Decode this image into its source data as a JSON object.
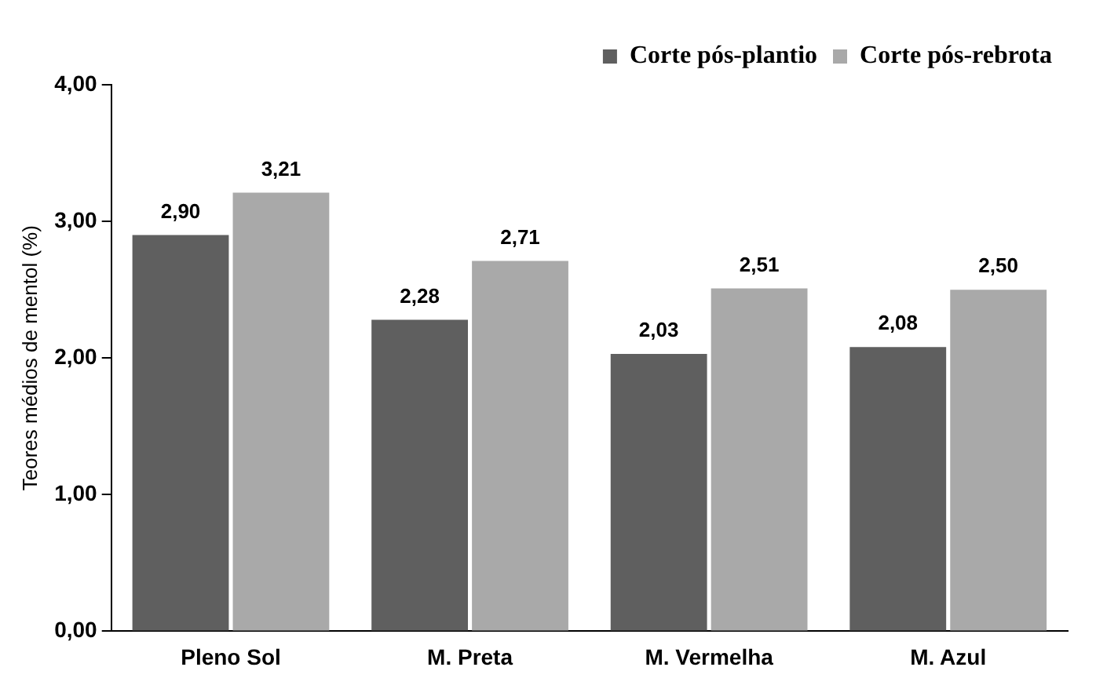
{
  "chart_data": {
    "type": "bar",
    "ylabel": "Teores médios de mentol (%)",
    "categories": [
      "Pleno Sol",
      "M. Preta",
      "M. Vermelha",
      "M. Azul"
    ],
    "series": [
      {
        "name": "Corte pós-plantio",
        "color": "#5f5f5f",
        "values": [
          2.9,
          2.28,
          2.03,
          2.08
        ],
        "value_labels": [
          "2,90",
          "2,28",
          "2,03",
          "2,08"
        ]
      },
      {
        "name": "Corte pós-rebrota",
        "color": "#a9a9a9",
        "values": [
          3.21,
          2.71,
          2.51,
          2.5
        ],
        "value_labels": [
          "3,21",
          "2,71",
          "2,51",
          "2,50"
        ]
      }
    ],
    "ylim": [
      0,
      4
    ],
    "yticks": [
      {
        "value": 0,
        "label": "0,00"
      },
      {
        "value": 1,
        "label": "1,00"
      },
      {
        "value": 2,
        "label": "2,00"
      },
      {
        "value": 3,
        "label": "3,00"
      },
      {
        "value": 4,
        "label": "4,00"
      }
    ],
    "grid": false,
    "legend": "top right"
  }
}
